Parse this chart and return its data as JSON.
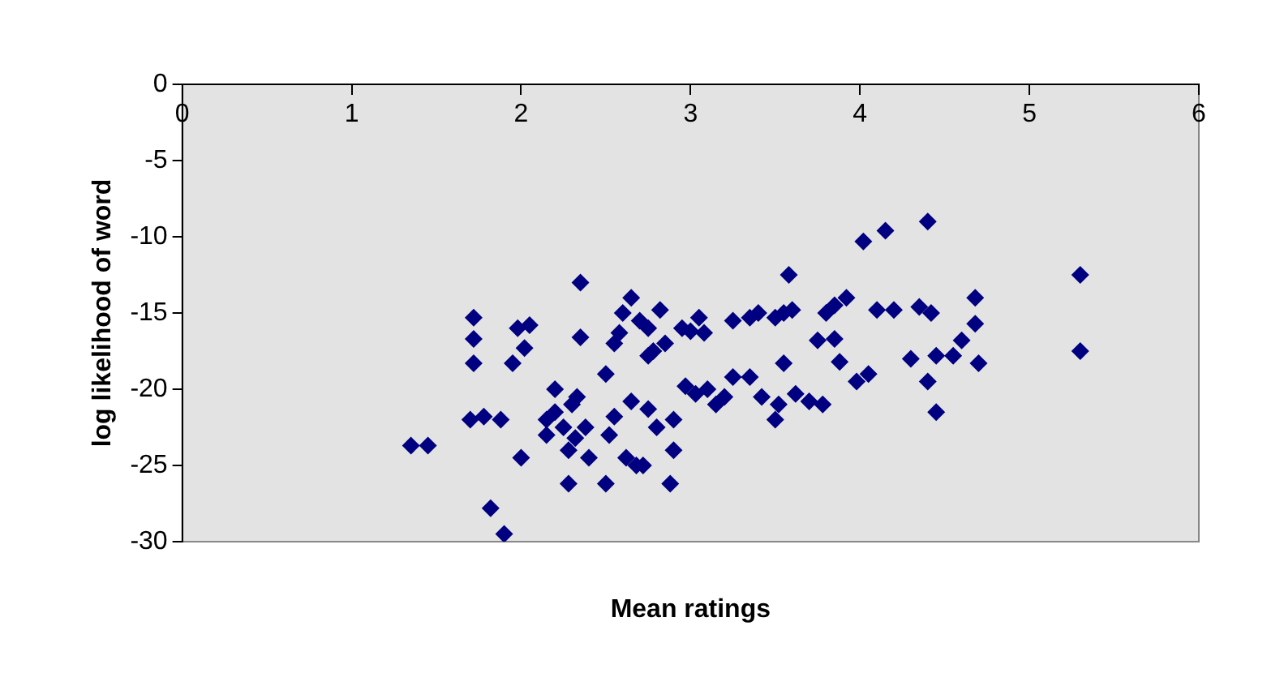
{
  "chart_data": {
    "type": "scatter",
    "xlabel": "Mean ratings",
    "ylabel": "log likelihood of word",
    "marker": "diamond",
    "grid": false,
    "xlim": [
      0,
      6
    ],
    "xticks": [
      0,
      1,
      2,
      3,
      4,
      5,
      6
    ],
    "ylim": [
      -30,
      0
    ],
    "yticks": [
      -30,
      -25,
      -20,
      -15,
      -10,
      -5,
      0
    ],
    "series": [
      {
        "color": "#000080",
        "x": [
          1.35,
          1.45,
          1.7,
          1.72,
          1.72,
          1.72,
          1.78,
          1.82,
          1.88,
          1.9,
          1.95,
          1.98,
          2.0,
          2.02,
          2.05,
          2.15,
          2.15,
          2.2,
          2.2,
          2.25,
          2.28,
          2.28,
          2.3,
          2.32,
          2.33,
          2.35,
          2.35,
          2.38,
          2.4,
          2.5,
          2.5,
          2.52,
          2.55,
          2.55,
          2.58,
          2.6,
          2.62,
          2.65,
          2.65,
          2.68,
          2.7,
          2.72,
          2.75,
          2.75,
          2.75,
          2.78,
          2.8,
          2.82,
          2.85,
          2.88,
          2.9,
          2.9,
          2.95,
          2.97,
          3.0,
          3.03,
          3.05,
          3.08,
          3.1,
          3.15,
          3.2,
          3.25,
          3.25,
          3.35,
          3.35,
          3.4,
          3.42,
          3.5,
          3.5,
          3.52,
          3.55,
          3.55,
          3.58,
          3.6,
          3.62,
          3.7,
          3.75,
          3.78,
          3.8,
          3.85,
          3.85,
          3.88,
          3.92,
          3.98,
          4.02,
          4.05,
          4.1,
          4.15,
          4.2,
          4.3,
          4.35,
          4.4,
          4.4,
          4.42,
          4.45,
          4.45,
          4.55,
          4.6,
          4.68,
          4.68,
          4.7,
          5.3,
          5.3
        ],
        "values": [
          -23.7,
          -23.7,
          -22,
          -15.3,
          -16.7,
          -18.3,
          -21.8,
          -27.8,
          -22,
          -29.5,
          -18.3,
          -16,
          -24.5,
          -17.3,
          -15.8,
          -22,
          -23,
          -20,
          -21.5,
          -22.5,
          -24,
          -26.2,
          -21,
          -23.2,
          -20.5,
          -13,
          -16.6,
          -22.5,
          -24.5,
          -19,
          -26.2,
          -23,
          -17,
          -21.8,
          -16.3,
          -15,
          -24.5,
          -20.8,
          -14,
          -25,
          -15.5,
          -25,
          -16,
          -21.3,
          -17.8,
          -17.5,
          -22.5,
          -14.8,
          -17,
          -26.2,
          -24,
          -22,
          -16,
          -19.8,
          -16.2,
          -20.3,
          -15.3,
          -16.3,
          -20,
          -21,
          -20.5,
          -15.5,
          -19.2,
          -15.3,
          -19.2,
          -15,
          -20.5,
          -15.3,
          -22,
          -21,
          -15,
          -18.3,
          -12.5,
          -14.8,
          -20.3,
          -20.8,
          -16.8,
          -21,
          -15,
          -14.5,
          -16.7,
          -18.2,
          -14,
          -19.5,
          -10.3,
          -19,
          -14.8,
          -9.6,
          -14.8,
          -18,
          -14.6,
          -9,
          -19.5,
          -15,
          -21.5,
          -17.8,
          -17.8,
          -16.8,
          -14,
          -15.7,
          -18.3,
          -12.5,
          -17.5
        ]
      }
    ]
  }
}
